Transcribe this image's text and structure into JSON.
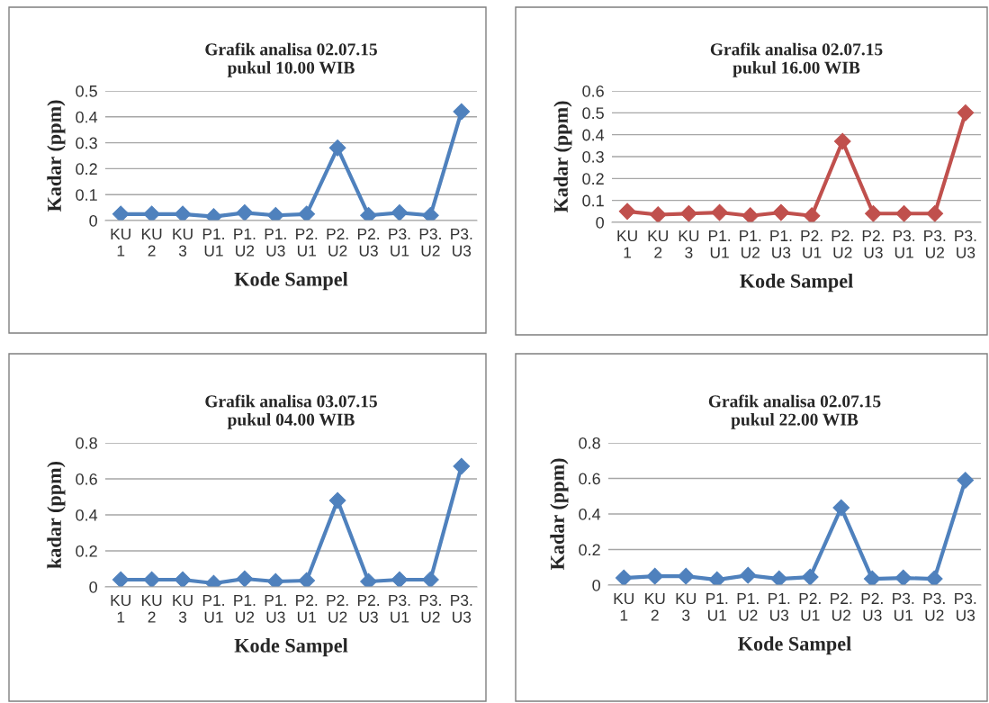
{
  "chart_data": [
    {
      "type": "line",
      "title": "Grafik analisa 02.07.15\npukul 10.00 WIB",
      "xlabel": "Kode Sampel",
      "ylabel": "Kadar (ppm)",
      "categories": [
        "KU\n1",
        "KU\n2",
        "KU\n3",
        "P1.\nU1",
        "P1.\nU2",
        "P1.\nU3",
        "P2.\nU1",
        "P2.\nU2",
        "P2.\nU3",
        "P3.\nU1",
        "P3.\nU2",
        "P3.\nU3"
      ],
      "series": [
        {
          "color": "#4f81bd",
          "values": [
            0.025,
            0.025,
            0.025,
            0.015,
            0.03,
            0.02,
            0.025,
            0.28,
            0.02,
            0.03,
            0.02,
            0.42
          ]
        }
      ],
      "ylim": [
        0,
        0.5
      ],
      "yticks": [
        0,
        0.1,
        0.2,
        0.3,
        0.4,
        0.5
      ],
      "grid": "y",
      "marker": "diamond",
      "line_style": "solid"
    },
    {
      "type": "line",
      "title": "Grafik analisa 02.07.15\npukul 16.00 WIB",
      "xlabel": "Kode Sampel",
      "ylabel": "Kadar (ppm)",
      "categories": [
        "KU\n1",
        "KU\n2",
        "KU\n3",
        "P1.\nU1",
        "P1.\nU2",
        "P1.\nU3",
        "P2.\nU1",
        "P2.\nU2",
        "P2.\nU3",
        "P3.\nU1",
        "P3.\nU2",
        "P3.\nU3"
      ],
      "series": [
        {
          "color": "#c0504d",
          "values": [
            0.05,
            0.035,
            0.04,
            0.045,
            0.03,
            0.045,
            0.03,
            0.37,
            0.04,
            0.04,
            0.04,
            0.5
          ]
        }
      ],
      "ylim": [
        0,
        0.6
      ],
      "yticks": [
        0,
        0.1,
        0.2,
        0.3,
        0.4,
        0.5,
        0.6
      ],
      "grid": "y",
      "marker": "diamond",
      "line_style": "solid"
    },
    {
      "type": "line",
      "title": "Grafik analisa 03.07.15\npukul 04.00 WIB",
      "xlabel": "Kode Sampel",
      "ylabel": "kadar (ppm)",
      "categories": [
        "KU\n1",
        "KU\n2",
        "KU\n3",
        "P1.\nU1",
        "P1.\nU2",
        "P1.\nU3",
        "P2.\nU1",
        "P2.\nU2",
        "P2.\nU3",
        "P3.\nU1",
        "P3.\nU2",
        "P3.\nU3"
      ],
      "series": [
        {
          "color": "#4f81bd",
          "values": [
            0.04,
            0.04,
            0.04,
            0.02,
            0.045,
            0.03,
            0.035,
            0.48,
            0.03,
            0.04,
            0.04,
            0.67
          ]
        }
      ],
      "ylim": [
        0,
        0.8
      ],
      "yticks": [
        0,
        0.2,
        0.4,
        0.6,
        0.8
      ],
      "grid": "y",
      "marker": "diamond",
      "line_style": "solid"
    },
    {
      "type": "line",
      "title": "Grafik analisa 02.07.15\npukul 22.00 WIB",
      "xlabel": "Kode Sampel",
      "ylabel": "Kadar (ppm)",
      "categories": [
        "KU\n1",
        "KU\n2",
        "KU\n3",
        "P1.\nU1",
        "P1.\nU2",
        "P1.\nU3",
        "P2.\nU1",
        "P2.\nU2",
        "P2.\nU3",
        "P3.\nU1",
        "P3.\nU2",
        "P3.\nU3"
      ],
      "series": [
        {
          "color": "#4f81bd",
          "values": [
            0.04,
            0.05,
            0.05,
            0.03,
            0.055,
            0.035,
            0.045,
            0.435,
            0.035,
            0.04,
            0.035,
            0.59
          ]
        }
      ],
      "ylim": [
        0,
        0.8
      ],
      "yticks": [
        0,
        0.2,
        0.4,
        0.6,
        0.8
      ],
      "grid": "y",
      "marker": "diamond",
      "line_style": "solid"
    }
  ]
}
